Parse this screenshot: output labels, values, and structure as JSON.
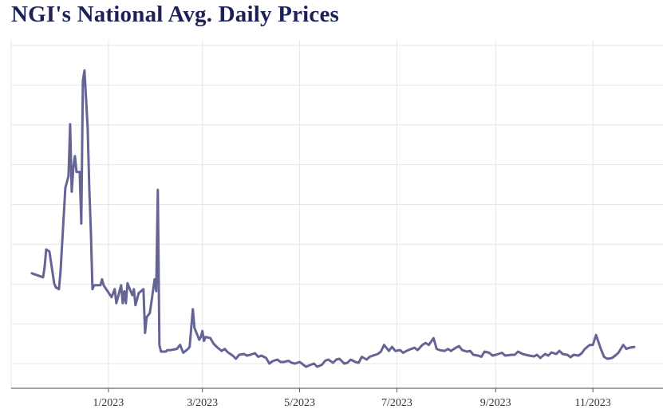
{
  "chart_data": {
    "type": "line",
    "title": "NGI's National Avg. Daily Prices",
    "xlabel": "",
    "ylabel": "",
    "x_tick_labels": [
      "1/2023",
      "3/2023",
      "5/2023",
      "7/2023",
      "9/2023",
      "11/2023"
    ],
    "x_tick_dates": [
      "2023-01-01",
      "2023-03-01",
      "2023-05-01",
      "2023-07-01",
      "2023-09-01",
      "2023-11-01"
    ],
    "xlim": [
      "2022-11-01",
      "2023-12-15"
    ],
    "ylim": [
      0,
      8
    ],
    "y_tick_labels_shown": false,
    "grid": true,
    "line_color": "#646594",
    "series": [
      {
        "x": [
          "2022-11-14",
          "2022-11-21",
          "2022-11-22",
          "2022-11-23",
          "2022-11-25",
          "2022-11-28",
          "2022-11-29",
          "2022-12-01",
          "2022-12-02",
          "2022-12-05",
          "2022-12-07",
          "2022-12-08",
          "2022-12-09",
          "2022-12-10",
          "2022-12-11",
          "2022-12-12",
          "2022-12-14",
          "2022-12-15",
          "2022-12-16",
          "2022-12-17",
          "2022-12-19",
          "2022-12-20",
          "2022-12-21",
          "2022-12-22",
          "2022-12-23",
          "2022-12-27",
          "2022-12-28",
          "2022-12-29",
          "2023-01-03",
          "2023-01-04",
          "2023-01-05",
          "2023-01-06",
          "2023-01-09",
          "2023-01-10",
          "2023-01-11",
          "2023-01-12",
          "2023-01-13",
          "2023-01-16",
          "2023-01-17",
          "2023-01-18",
          "2023-01-19",
          "2023-01-20",
          "2023-01-23",
          "2023-01-24",
          "2023-01-25",
          "2023-01-26",
          "2023-01-27",
          "2023-01-30",
          "2023-01-31",
          "2023-02-01",
          "2023-02-02",
          "2023-02-03",
          "2023-02-06",
          "2023-02-07",
          "2023-02-09",
          "2023-02-13",
          "2023-02-15",
          "2023-02-17",
          "2023-02-20",
          "2023-02-21",
          "2023-02-23",
          "2023-02-24",
          "2023-02-27",
          "2023-02-28",
          "2023-03-01",
          "2023-03-02",
          "2023-03-03",
          "2023-03-06",
          "2023-03-07",
          "2023-03-08",
          "2023-03-10",
          "2023-03-13",
          "2023-03-15",
          "2023-03-17",
          "2023-03-20",
          "2023-03-22",
          "2023-03-24",
          "2023-03-27",
          "2023-03-29",
          "2023-03-31",
          "2023-04-03",
          "2023-04-05",
          "2023-04-07",
          "2023-04-10",
          "2023-04-12",
          "2023-04-14",
          "2023-04-17",
          "2023-04-19",
          "2023-04-21",
          "2023-04-24",
          "2023-04-26",
          "2023-04-28",
          "2023-05-01",
          "2023-05-03",
          "2023-05-05",
          "2023-05-08",
          "2023-05-10",
          "2023-05-12",
          "2023-05-15",
          "2023-05-17",
          "2023-05-19",
          "2023-05-22",
          "2023-05-24",
          "2023-05-26",
          "2023-05-29",
          "2023-05-31",
          "2023-06-02",
          "2023-06-05",
          "2023-06-07",
          "2023-06-09",
          "2023-06-12",
          "2023-06-14",
          "2023-06-16",
          "2023-06-19",
          "2023-06-21",
          "2023-06-23",
          "2023-06-26",
          "2023-06-28",
          "2023-06-30",
          "2023-07-03",
          "2023-07-05",
          "2023-07-07",
          "2023-07-10",
          "2023-07-12",
          "2023-07-14",
          "2023-07-17",
          "2023-07-19",
          "2023-07-21",
          "2023-07-24",
          "2023-07-26",
          "2023-07-28",
          "2023-07-31",
          "2023-08-02",
          "2023-08-04",
          "2023-08-07",
          "2023-08-09",
          "2023-08-11",
          "2023-08-14",
          "2023-08-16",
          "2023-08-18",
          "2023-08-21",
          "2023-08-23",
          "2023-08-25",
          "2023-08-28",
          "2023-08-30",
          "2023-09-01",
          "2023-09-05",
          "2023-09-07",
          "2023-09-11",
          "2023-09-13",
          "2023-09-15",
          "2023-09-18",
          "2023-09-20",
          "2023-09-22",
          "2023-09-25",
          "2023-09-27",
          "2023-09-29",
          "2023-10-02",
          "2023-10-04",
          "2023-10-06",
          "2023-10-09",
          "2023-10-11",
          "2023-10-13",
          "2023-10-16",
          "2023-10-18",
          "2023-10-20",
          "2023-10-23",
          "2023-10-25",
          "2023-10-27",
          "2023-10-30",
          "2023-11-01",
          "2023-11-03",
          "2023-11-06",
          "2023-11-08",
          "2023-11-10",
          "2023-11-13",
          "2023-11-15",
          "2023-11-17",
          "2023-11-20",
          "2023-11-22",
          "2023-11-24",
          "2023-11-27"
        ],
        "values": [
          2.35,
          2.25,
          2.5,
          2.95,
          2.9,
          2.1,
          2.0,
          1.95,
          2.4,
          4.5,
          4.8,
          6.1,
          4.4,
          5.0,
          5.3,
          4.9,
          4.9,
          3.6,
          7.2,
          7.45,
          6.0,
          4.5,
          3.4,
          1.95,
          2.05,
          2.05,
          2.2,
          2.05,
          1.75,
          1.85,
          1.95,
          1.6,
          2.05,
          1.6,
          1.9,
          1.6,
          2.1,
          1.8,
          1.95,
          1.55,
          1.7,
          1.85,
          1.95,
          0.85,
          1.25,
          1.3,
          1.35,
          2.2,
          1.9,
          4.45,
          0.55,
          0.38,
          0.38,
          0.42,
          0.42,
          0.45,
          0.55,
          0.35,
          0.45,
          0.5,
          1.45,
          0.98,
          0.68,
          0.75,
          0.9,
          0.65,
          0.75,
          0.72,
          0.65,
          0.58,
          0.5,
          0.4,
          0.45,
          0.36,
          0.28,
          0.2,
          0.3,
          0.32,
          0.28,
          0.3,
          0.34,
          0.25,
          0.28,
          0.22,
          0.08,
          0.14,
          0.18,
          0.12,
          0.12,
          0.15,
          0.1,
          0.08,
          0.12,
          0.06,
          0.0,
          0.05,
          0.08,
          0.0,
          0.05,
          0.15,
          0.18,
          0.1,
          0.18,
          0.2,
          0.08,
          0.1,
          0.18,
          0.12,
          0.1,
          0.25,
          0.18,
          0.25,
          0.28,
          0.32,
          0.38,
          0.55,
          0.4,
          0.5,
          0.4,
          0.42,
          0.35,
          0.4,
          0.45,
          0.48,
          0.42,
          0.55,
          0.6,
          0.55,
          0.72,
          0.45,
          0.42,
          0.4,
          0.45,
          0.4,
          0.48,
          0.52,
          0.42,
          0.38,
          0.4,
          0.3,
          0.28,
          0.25,
          0.38,
          0.35,
          0.28,
          0.3,
          0.35,
          0.28,
          0.3,
          0.3,
          0.38,
          0.32,
          0.3,
          0.28,
          0.26,
          0.3,
          0.22,
          0.32,
          0.28,
          0.36,
          0.32,
          0.4,
          0.32,
          0.3,
          0.24,
          0.3,
          0.28,
          0.34,
          0.45,
          0.55,
          0.55,
          0.8,
          0.45,
          0.25,
          0.2,
          0.22,
          0.28,
          0.35,
          0.55,
          0.45,
          0.48,
          0.5
        ]
      }
    ]
  }
}
